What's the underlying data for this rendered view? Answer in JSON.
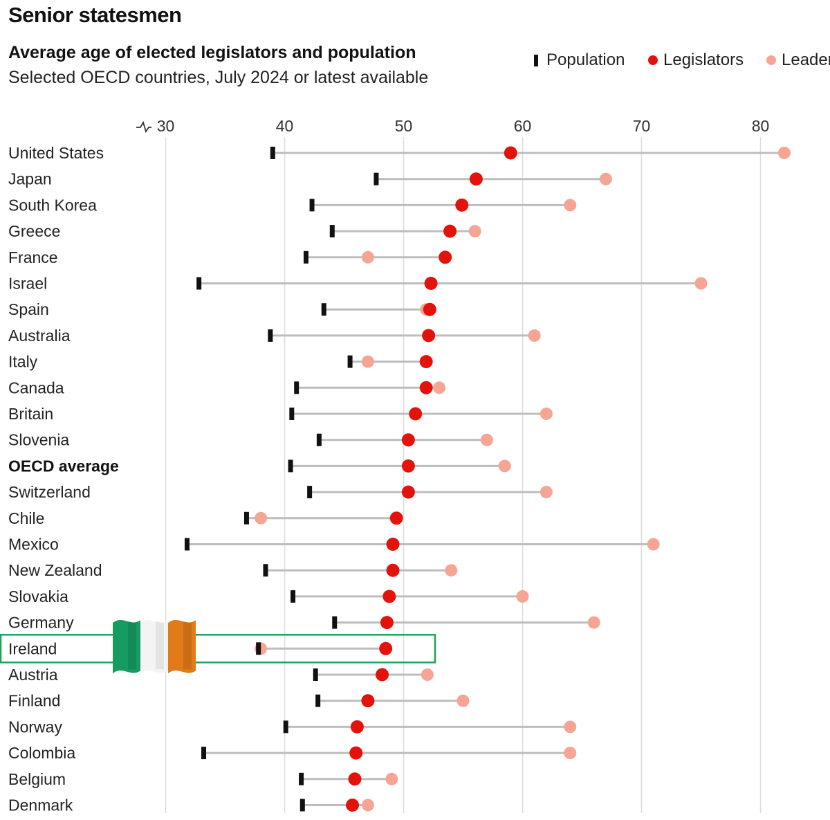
{
  "chart_data": {
    "type": "dot-range",
    "title": "Senior statesmen",
    "subtitle": "Average age of elected legislators and population",
    "note": "Selected OECD countries, July 2024 or latest available",
    "legend": [
      {
        "name": "Population",
        "color": "#111111",
        "marker": "bar"
      },
      {
        "name": "Legislators",
        "color": "#e3120b",
        "marker": "dot"
      },
      {
        "name": "Leaders",
        "color": "#f6a594",
        "marker": "dot"
      }
    ],
    "xlim": [
      30,
      82
    ],
    "x_ticks": [
      30,
      40,
      50,
      60,
      70,
      80
    ],
    "axis_break_at_start": true,
    "highlight": "Ireland",
    "rows": [
      {
        "country": "United States",
        "population": 39.0,
        "legislators": 59.0,
        "leaders": 82.0
      },
      {
        "country": "Japan",
        "population": 47.7,
        "legislators": 56.1,
        "leaders": 67.0
      },
      {
        "country": "South Korea",
        "population": 42.3,
        "legislators": 54.9,
        "leaders": 64.0
      },
      {
        "country": "Greece",
        "population": 44.0,
        "legislators": 53.9,
        "leaders": 56.0
      },
      {
        "country": "France",
        "population": 41.8,
        "legislators": 53.5,
        "leaders": 47.0
      },
      {
        "country": "Israel",
        "population": 32.8,
        "legislators": 52.3,
        "leaders": 75.0
      },
      {
        "country": "Spain",
        "population": 43.3,
        "legislators": 52.2,
        "leaders": 51.9
      },
      {
        "country": "Australia",
        "population": 38.8,
        "legislators": 52.1,
        "leaders": 61.0
      },
      {
        "country": "Italy",
        "population": 45.5,
        "legislators": 51.9,
        "leaders": 47.0
      },
      {
        "country": "Canada",
        "population": 41.0,
        "legislators": 51.9,
        "leaders": 53.0
      },
      {
        "country": "Britain",
        "population": 40.6,
        "legislators": 51.0,
        "leaders": 62.0
      },
      {
        "country": "Slovenia",
        "population": 42.9,
        "legislators": 50.4,
        "leaders": 57.0
      },
      {
        "country": "OECD average",
        "population": 40.5,
        "legislators": 50.4,
        "leaders": 58.5,
        "bold": true
      },
      {
        "country": "Switzerland",
        "population": 42.1,
        "legislators": 50.4,
        "leaders": 62.0
      },
      {
        "country": "Chile",
        "population": 36.8,
        "legislators": 49.4,
        "leaders": 38.0
      },
      {
        "country": "Mexico",
        "population": 31.8,
        "legislators": 49.1,
        "leaders": 71.0
      },
      {
        "country": "New Zealand",
        "population": 38.4,
        "legislators": 49.1,
        "leaders": 54.0
      },
      {
        "country": "Slovakia",
        "population": 40.7,
        "legislators": 48.8,
        "leaders": 60.0
      },
      {
        "country": "Germany",
        "population": 44.2,
        "legislators": 48.6,
        "leaders": 66.0
      },
      {
        "country": "Ireland",
        "population": 37.8,
        "legislators": 48.5,
        "leaders": 38.0
      },
      {
        "country": "Austria",
        "population": 42.6,
        "legislators": 48.2,
        "leaders": 52.0
      },
      {
        "country": "Finland",
        "population": 42.8,
        "legislators": 47.0,
        "leaders": 55.0
      },
      {
        "country": "Norway",
        "population": 40.1,
        "legislators": 46.1,
        "leaders": 64.0
      },
      {
        "country": "Colombia",
        "population": 33.2,
        "legislators": 46.0,
        "leaders": 64.0
      },
      {
        "country": "Belgium",
        "population": 41.4,
        "legislators": 45.9,
        "leaders": 49.0
      },
      {
        "country": "Denmark",
        "population": 41.5,
        "legislators": 45.7,
        "leaders": 47.0
      }
    ]
  }
}
